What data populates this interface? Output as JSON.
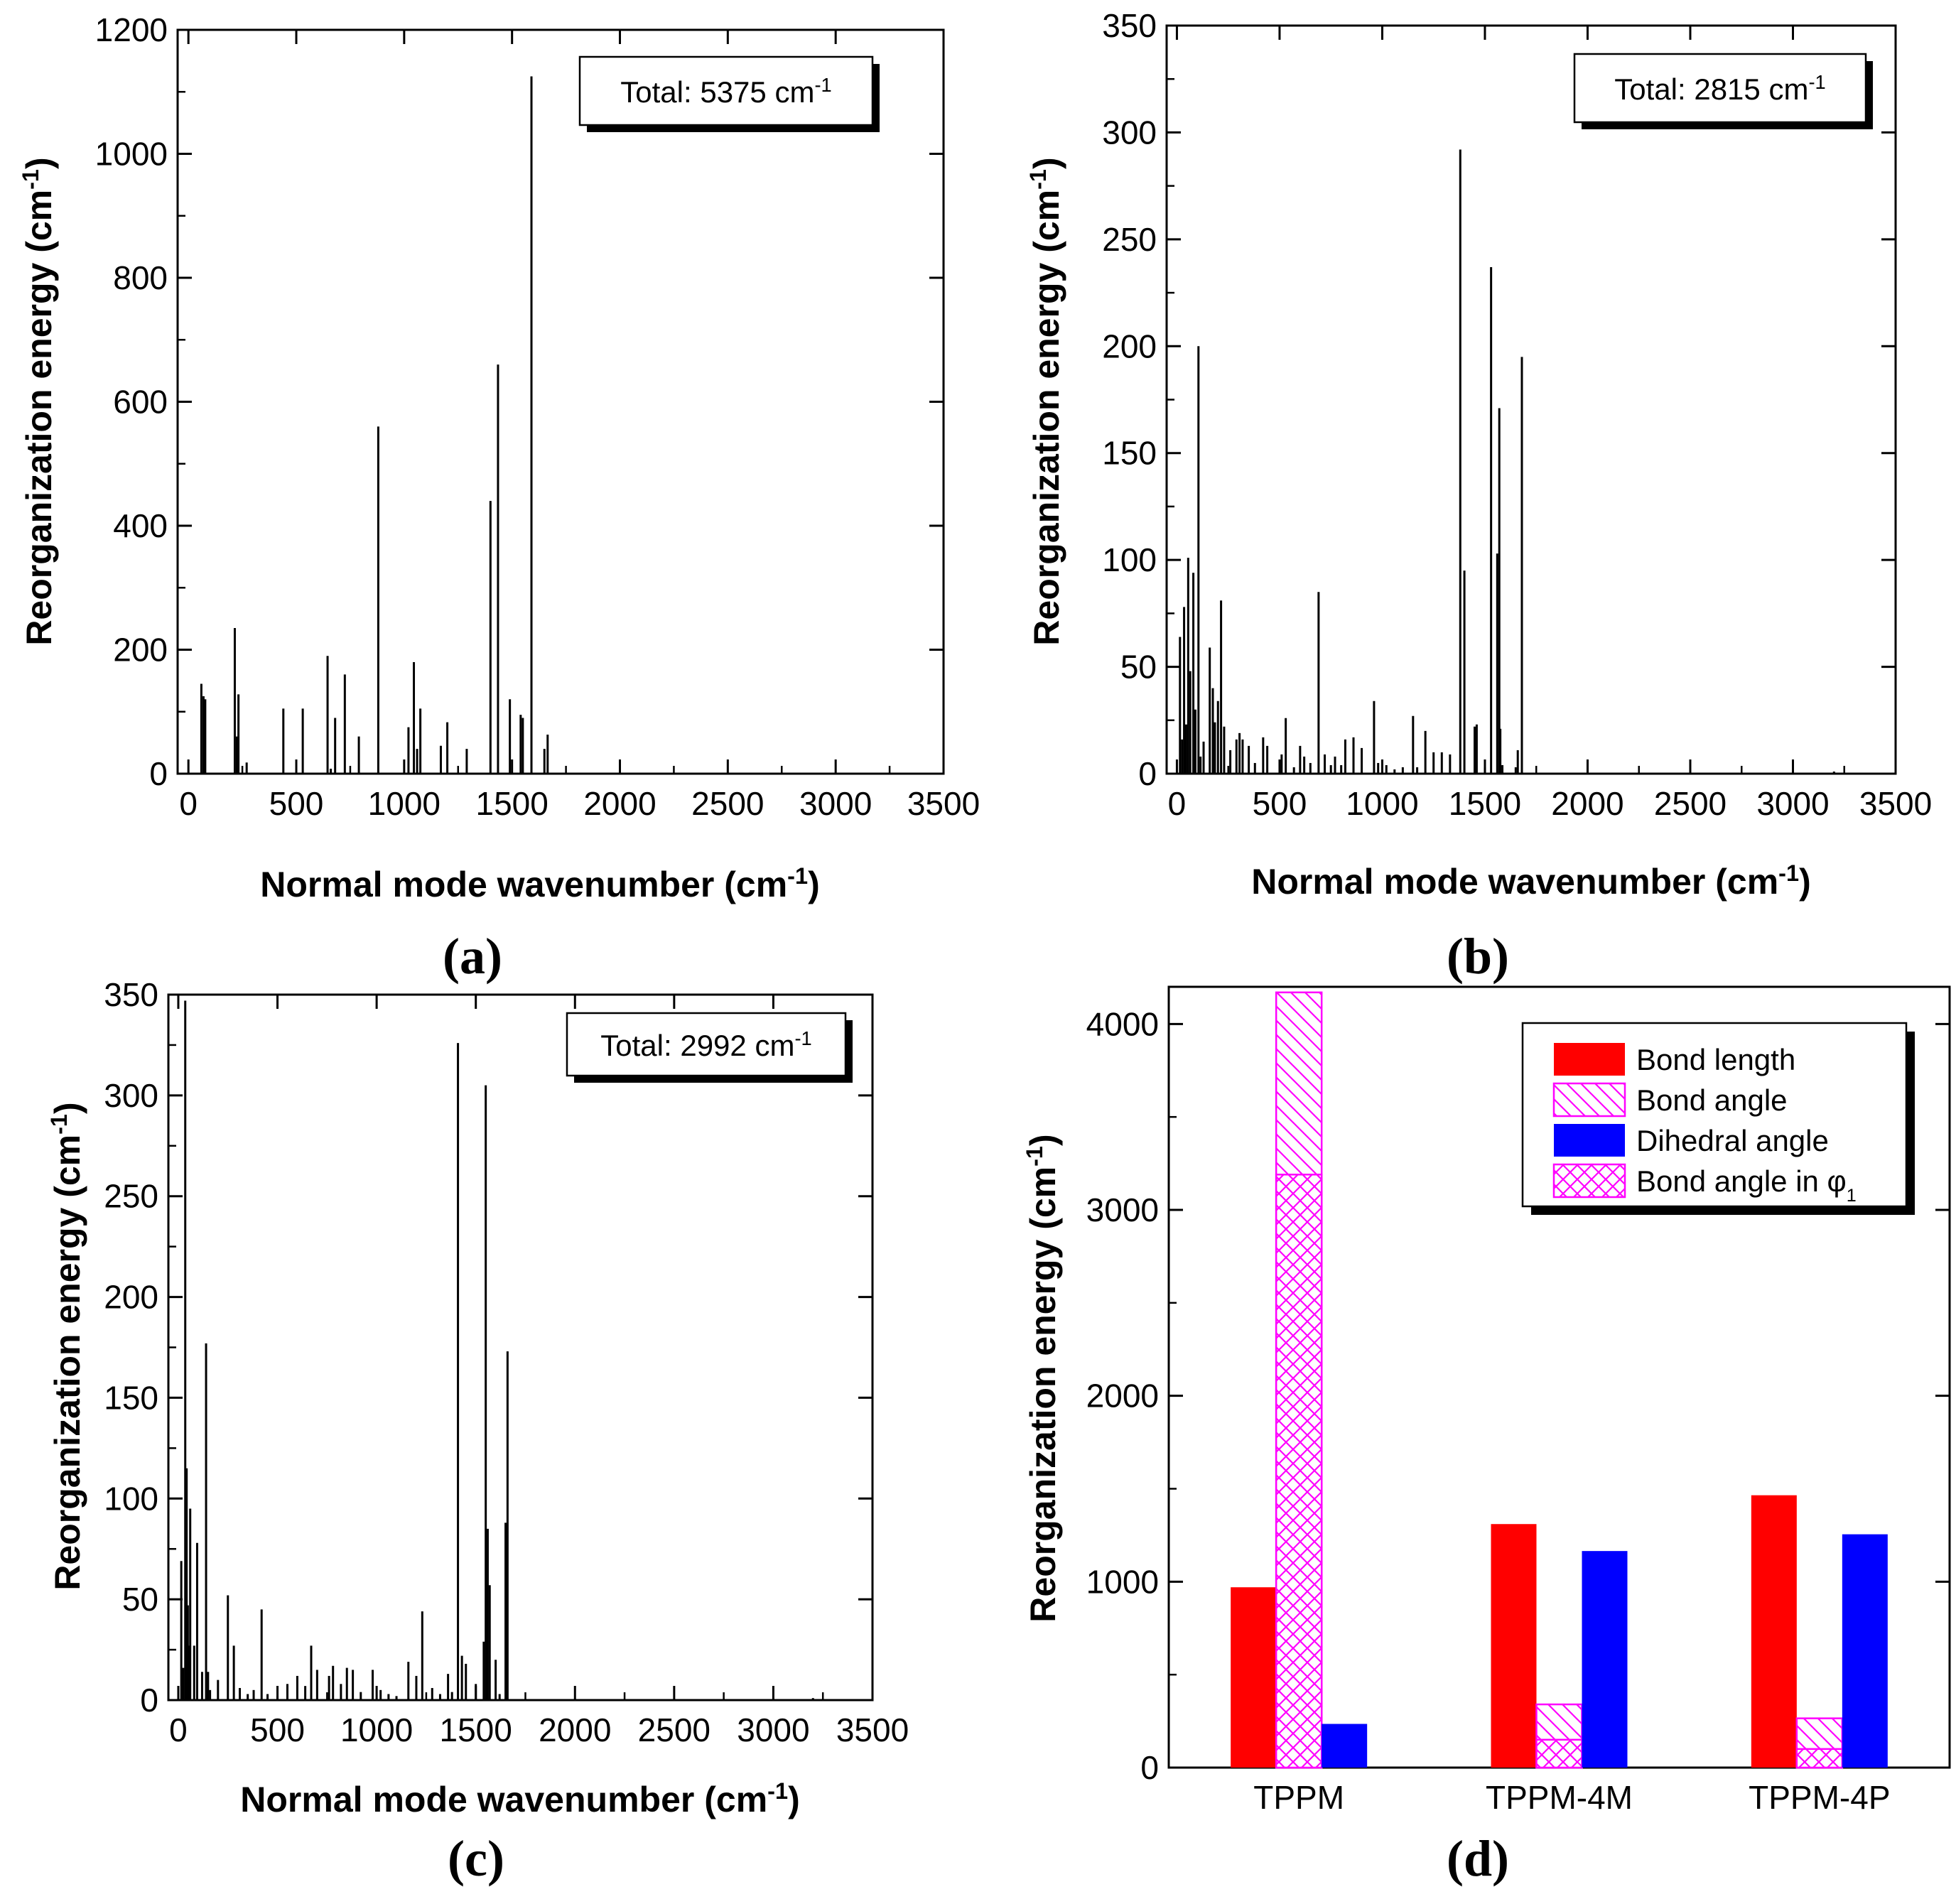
{
  "chart_data": [
    {
      "id": "a",
      "type": "bar",
      "panel_label": "(a)",
      "title": "",
      "xlabel": "Normal mode wavenumber (cm-1)",
      "xlabel_main": "Normal mode wavenumber (cm",
      "xlabel_sup": "-1",
      "xlabel_end": ")",
      "ylabel_main": "Reorganization energy (cm",
      "ylabel_sup": "-1",
      "ylabel_end": ")",
      "xlim": [
        -50,
        3500
      ],
      "ylim": [
        0,
        1200
      ],
      "xticks": [
        0,
        500,
        1000,
        1500,
        2000,
        2500,
        3000,
        3500
      ],
      "yticks": [
        0,
        200,
        400,
        600,
        800,
        1000,
        1200
      ],
      "total_main": "Total: 5375 cm",
      "total_sup": "-1",
      "x": [
        60,
        70,
        78,
        215,
        225,
        232,
        270,
        440,
        530,
        645,
        660,
        680,
        725,
        790,
        880,
        1020,
        1045,
        1060,
        1075,
        1170,
        1200,
        1290,
        1400,
        1435,
        1490,
        1540,
        1550,
        1590,
        1650,
        1665
      ],
      "values": [
        145,
        125,
        120,
        235,
        60,
        128,
        18,
        105,
        105,
        190,
        8,
        90,
        160,
        60,
        560,
        75,
        180,
        40,
        105,
        45,
        83,
        40,
        440,
        660,
        120,
        95,
        90,
        1125,
        40,
        63
      ]
    },
    {
      "id": "b",
      "type": "bar",
      "panel_label": "(b)",
      "title": "",
      "xlabel": "Normal mode wavenumber (cm-1)",
      "xlabel_main": "Normal mode wavenumber (cm",
      "xlabel_sup": "-1",
      "xlabel_end": ")",
      "ylabel_main": "Reorganization energy (cm",
      "ylabel_sup": "-1",
      "ylabel_end": ")",
      "xlim": [
        -50,
        3500
      ],
      "ylim": [
        0,
        350
      ],
      "xticks": [
        0,
        500,
        1000,
        1500,
        2000,
        2500,
        3000,
        3500
      ],
      "yticks": [
        0,
        50,
        100,
        150,
        200,
        250,
        300,
        350
      ],
      "total_main": "Total: 2815 cm",
      "total_sup": "-1",
      "x": [
        15,
        25,
        35,
        45,
        55,
        65,
        80,
        90,
        105,
        115,
        130,
        160,
        175,
        185,
        200,
        215,
        230,
        260,
        290,
        305,
        320,
        350,
        380,
        420,
        440,
        510,
        530,
        570,
        600,
        620,
        650,
        690,
        720,
        750,
        770,
        800,
        820,
        860,
        900,
        960,
        980,
        1020,
        1060,
        1100,
        1150,
        1170,
        1210,
        1250,
        1290,
        1330,
        1380,
        1400,
        1450,
        1460,
        1500,
        1530,
        1560,
        1570,
        1575,
        1585,
        1650,
        1660,
        1680,
        3200
      ],
      "values": [
        64,
        16,
        78,
        23,
        101,
        48,
        94,
        30,
        200,
        8,
        15,
        59,
        40,
        24,
        34,
        81,
        22,
        11,
        16,
        19,
        16,
        13,
        5,
        17,
        13,
        9,
        26,
        3,
        13,
        8,
        5,
        85,
        9,
        4,
        8,
        4,
        16,
        17,
        12,
        34,
        5,
        4,
        2,
        3,
        27,
        3,
        20,
        10,
        10,
        9,
        292,
        95,
        22,
        23,
        3,
        237,
        103,
        171,
        21,
        4,
        3,
        11,
        195,
        1
      ]
    },
    {
      "id": "c",
      "type": "bar",
      "panel_label": "(c)",
      "title": "",
      "xlabel": "Normal mode wavenumber (cm-1)",
      "xlabel_main": "Normal mode wavenumber (cm",
      "xlabel_sup": "-1",
      "xlabel_end": ")",
      "ylabel_main": "Reorganization energy (cm",
      "ylabel_sup": "-1",
      "ylabel_end": ")",
      "xlim": [
        -50,
        3500
      ],
      "ylim": [
        0,
        350
      ],
      "xticks": [
        0,
        500,
        1000,
        1500,
        2000,
        2500,
        3000,
        3500
      ],
      "yticks": [
        0,
        50,
        100,
        150,
        200,
        250,
        300,
        350
      ],
      "total_main": "Total: 2992 cm",
      "total_sup": "-1",
      "x": [
        15,
        25,
        35,
        42,
        48,
        55,
        60,
        80,
        95,
        120,
        140,
        150,
        160,
        200,
        250,
        280,
        310,
        350,
        380,
        420,
        450,
        500,
        550,
        600,
        640,
        670,
        700,
        760,
        780,
        820,
        850,
        880,
        920,
        980,
        1020,
        1060,
        1100,
        1160,
        1200,
        1230,
        1280,
        1320,
        1360,
        1380,
        1410,
        1430,
        1450,
        1500,
        1540,
        1550,
        1560,
        1570,
        1600,
        1620,
        1650,
        1660,
        3200
      ],
      "values": [
        69,
        16,
        347,
        115,
        47,
        27,
        95,
        27,
        78,
        14,
        177,
        14,
        5,
        10,
        52,
        27,
        6,
        3,
        5,
        45,
        3,
        2,
        8,
        12,
        7,
        27,
        15,
        12,
        17,
        8,
        16,
        15,
        4,
        15,
        5,
        3,
        2,
        19,
        12,
        44,
        6,
        3,
        13,
        4,
        326,
        22,
        18,
        8,
        29,
        305,
        85,
        57,
        20,
        3,
        88,
        173,
        1
      ]
    },
    {
      "id": "d",
      "type": "bar",
      "panel_label": "(d)",
      "title": "",
      "xlabel": "",
      "ylabel_main": "Reorganization energy (cm",
      "ylabel_sup": "-1",
      "ylabel_end": ")",
      "ylim": [
        0,
        4200
      ],
      "yticks": [
        0,
        1000,
        2000,
        3000,
        4000
      ],
      "categories": [
        "TPPM",
        "TPPM-4M",
        "TPPM-4P"
      ],
      "series": [
        {
          "name": "Bond length",
          "values": [
            970,
            1310,
            1465
          ],
          "color": "#ff0000"
        },
        {
          "name": "Bond angle",
          "values": [
            4170,
            340,
            265
          ],
          "color": "#ff00ff"
        },
        {
          "name": "Dihedral angle",
          "values": [
            235,
            1165,
            1255
          ],
          "color": "#0000ff"
        },
        {
          "name": "Bond angle in φ1",
          "values": [
            3190,
            150,
            100
          ],
          "color": "#ff00ff"
        }
      ],
      "legend": [
        {
          "name": "Bond length",
          "main": "Bond length",
          "sub": ""
        },
        {
          "name": "Bond angle",
          "main": "Bond angle",
          "sub": ""
        },
        {
          "name": "Dihedral angle",
          "main": "Dihedral angle",
          "sub": ""
        },
        {
          "name": "Bond angle in φ1",
          "main": "Bond angle in φ",
          "sub": "1"
        }
      ],
      "legend_position": "top-right"
    }
  ]
}
